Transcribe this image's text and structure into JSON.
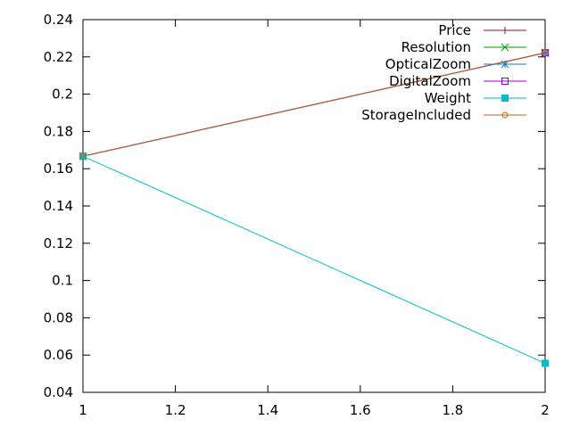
{
  "chart_data": {
    "type": "line",
    "title": "",
    "xlabel": "",
    "ylabel": "",
    "xlim": [
      1,
      2
    ],
    "ylim": [
      0.04,
      0.24
    ],
    "xticks": [
      "1",
      "1.2",
      "1.4",
      "1.6",
      "1.8",
      "2"
    ],
    "yticks": [
      "0.04",
      "0.06",
      "0.08",
      "0.1",
      "0.12",
      "0.14",
      "0.16",
      "0.18",
      "0.2",
      "0.22",
      "0.24"
    ],
    "grid": false,
    "legend_position": "top-right",
    "series": [
      {
        "name": "Price",
        "color": "#8b1a1a",
        "marker": "plus",
        "x": [
          1,
          2
        ],
        "y": [
          0.1667,
          0.2222
        ]
      },
      {
        "name": "Resolution",
        "color": "#009e00",
        "marker": "cross",
        "x": [
          1,
          2
        ],
        "y": [
          0.1667,
          0.2222
        ]
      },
      {
        "name": "OpticalZoom",
        "color": "#1f78b4",
        "marker": "star",
        "x": [
          1,
          2
        ],
        "y": [
          0.1667,
          0.2222
        ]
      },
      {
        "name": "DigitalZoom",
        "color": "#9400d3",
        "marker": "open-square",
        "x": [
          1,
          2
        ],
        "y": [
          0.1667,
          0.2222
        ]
      },
      {
        "name": "Weight",
        "color": "#00bfc4",
        "marker": "filled-square",
        "x": [
          1,
          2
        ],
        "y": [
          0.1667,
          0.0556
        ]
      },
      {
        "name": "StorageIncluded",
        "color": "#c0641e",
        "marker": "open-circle",
        "x": [
          1,
          2
        ],
        "y": [
          0.1667,
          0.2222
        ]
      }
    ]
  }
}
